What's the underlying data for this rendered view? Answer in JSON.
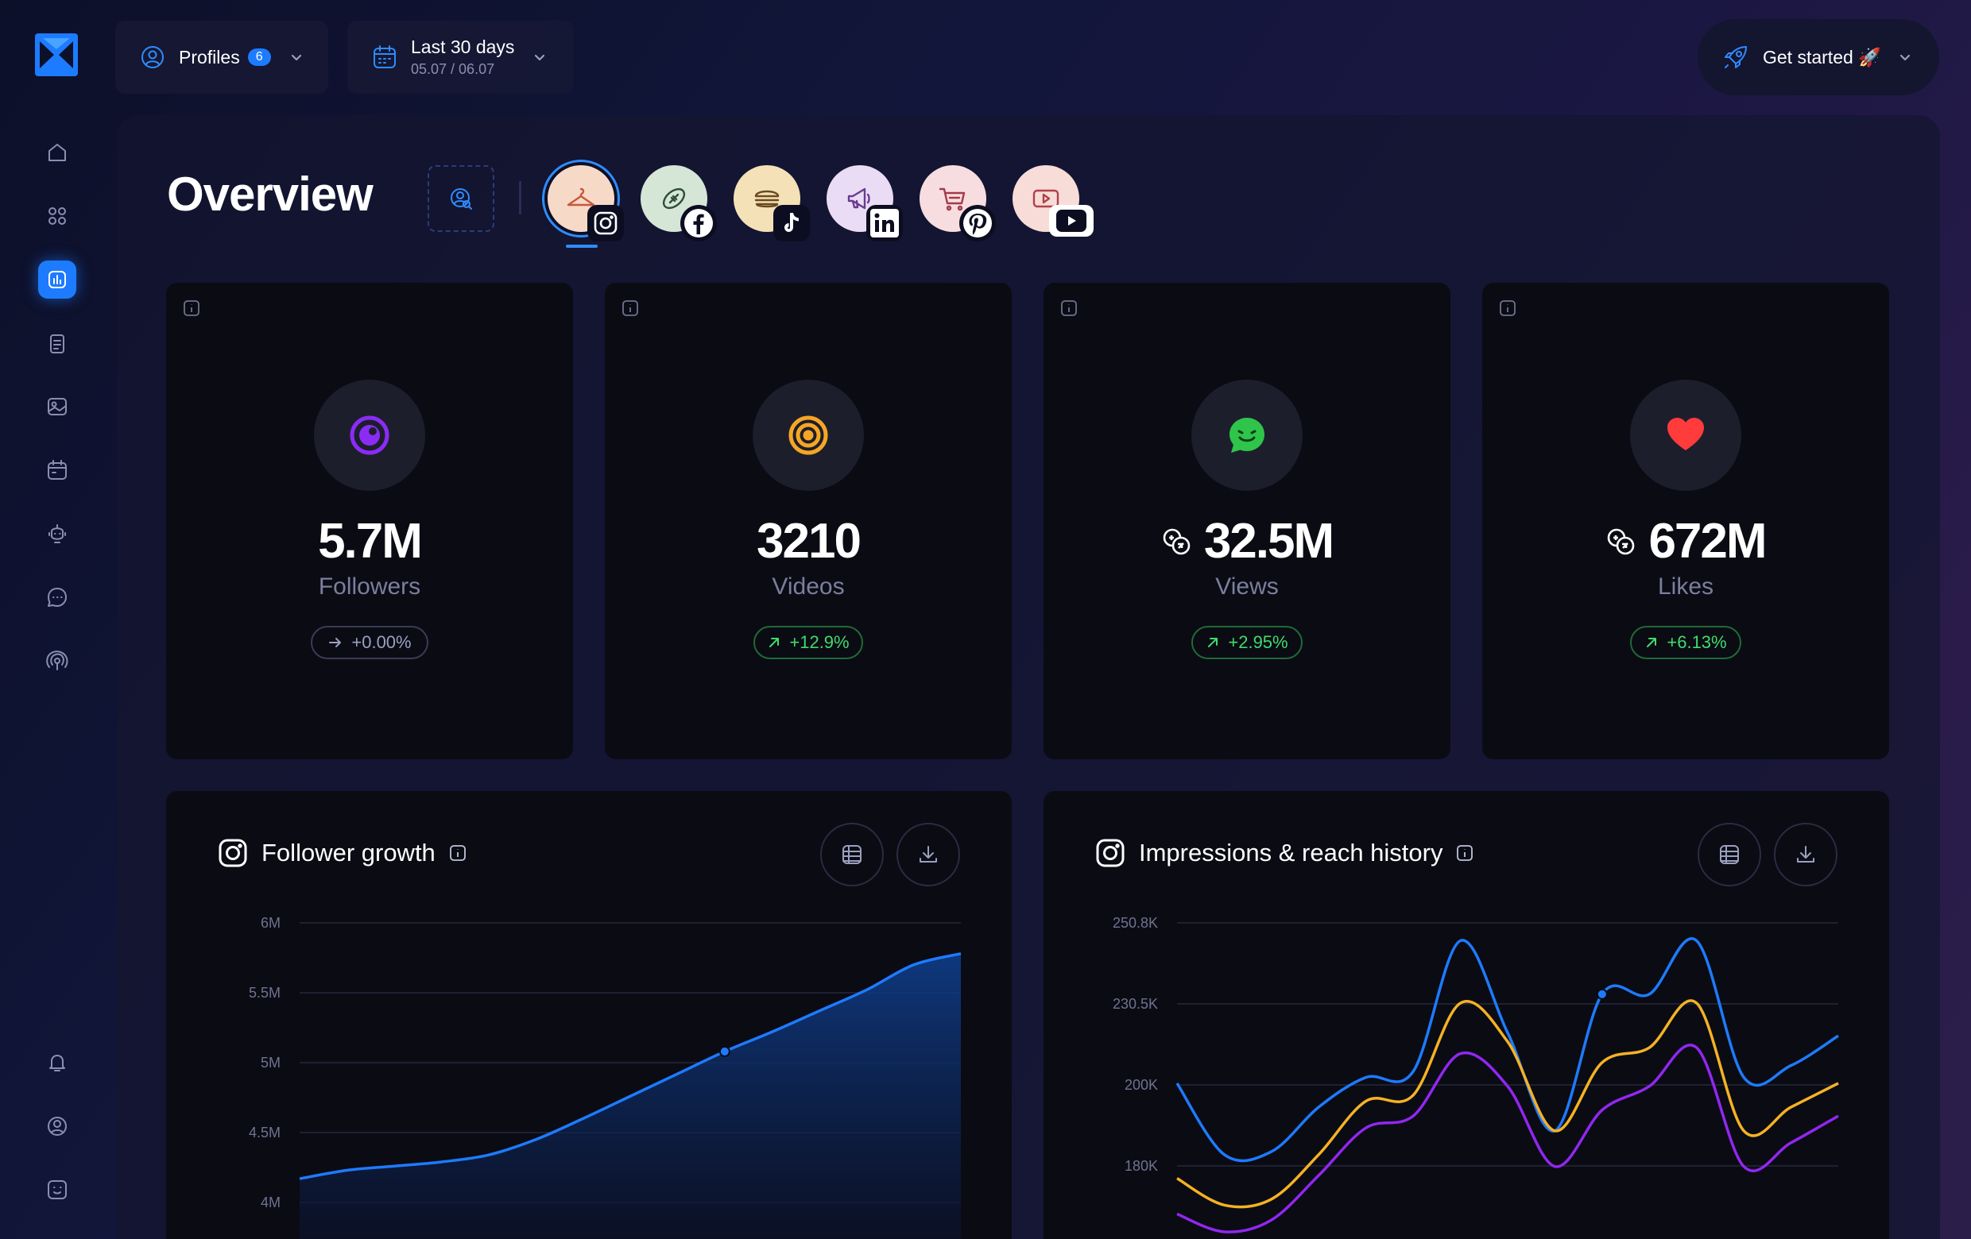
{
  "header": {
    "profiles_label": "Profiles",
    "profiles_count": "6",
    "date_range_label": "Last 30 days",
    "date_range_dates": "05.07 / 06.07",
    "get_started_label": "Get started 🚀"
  },
  "sidebar": {
    "items": [
      {
        "icon": "home-icon"
      },
      {
        "icon": "grid-icon"
      },
      {
        "icon": "analytics-icon",
        "active": true
      },
      {
        "icon": "clipboard-icon"
      },
      {
        "icon": "image-icon"
      },
      {
        "icon": "calendar-icon"
      },
      {
        "icon": "bot-icon"
      },
      {
        "icon": "chat-icon"
      },
      {
        "icon": "broadcast-icon"
      }
    ],
    "bottom_items": [
      {
        "icon": "bell-icon"
      },
      {
        "icon": "user-settings-icon"
      },
      {
        "icon": "smile-icon"
      }
    ]
  },
  "page": {
    "title": "Overview"
  },
  "profiles": [
    {
      "network": "instagram",
      "bg": "#f7d9c8",
      "selected": true
    },
    {
      "network": "facebook",
      "bg": "#d6e6d6"
    },
    {
      "network": "tiktok",
      "bg": "#f4e1b8"
    },
    {
      "network": "linkedin",
      "bg": "#eadcf4"
    },
    {
      "network": "pinterest",
      "bg": "#f7dde0"
    },
    {
      "network": "youtube",
      "bg": "#f7dcd8"
    }
  ],
  "stats": [
    {
      "value": "5.7M",
      "label": "Followers",
      "change": "+0.00%",
      "trend": "neutral",
      "icon": "eye-icon",
      "color": "#8b2cf5"
    },
    {
      "value": "3210",
      "label": "Videos",
      "change": "+12.9%",
      "trend": "up",
      "icon": "target-icon",
      "color": "#f5a623"
    },
    {
      "value": "32.5M",
      "label": "Views",
      "change": "+2.95%",
      "trend": "up",
      "icon": "smile-chat-icon",
      "color": "#2fc54a",
      "prefix_icon": "coins-icon"
    },
    {
      "value": "672M",
      "label": "Likes",
      "change": "+6.13%",
      "trend": "up",
      "icon": "heart-icon",
      "color": "#ff3b3b",
      "prefix_icon": "coins-icon"
    }
  ],
  "charts": {
    "follower_growth": {
      "title": "Follower growth"
    },
    "impressions": {
      "title": "Impressions & reach history"
    }
  },
  "chart_data": [
    {
      "type": "area",
      "title": "Follower growth",
      "y_ticks": [
        "6M",
        "5.5M",
        "5M",
        "4.5M",
        "4M"
      ],
      "ylim": [
        4000000,
        6000000
      ],
      "series": [
        {
          "values": [
            4170000,
            4230000,
            4260000,
            4290000,
            4340000,
            4450000,
            4600000,
            4760000,
            4920000,
            5080000,
            5220000,
            5370000,
            5520000,
            5700000,
            5780000
          ]
        }
      ],
      "highlight_index": 9,
      "colors": [
        "#1d7bff"
      ]
    },
    {
      "type": "line",
      "title": "Impressions & reach history",
      "y_ticks": [
        "250.8K",
        "230.5K",
        "200K",
        "180K"
      ],
      "series": [
        {
          "color": "#1d7bff",
          "values": [
            0.46,
            0.22,
            0.23,
            0.38,
            0.48,
            0.5,
            0.94,
            0.63,
            0.3,
            0.76,
            0.76,
            0.94,
            0.48,
            0.52,
            0.62
          ]
        },
        {
          "color": "#f5b223",
          "values": [
            0.14,
            0.05,
            0.07,
            0.22,
            0.4,
            0.42,
            0.73,
            0.6,
            0.3,
            0.53,
            0.58,
            0.73,
            0.3,
            0.38,
            0.46
          ]
        },
        {
          "color": "#9127f0",
          "values": [
            0.02,
            -0.04,
            0.0,
            0.15,
            0.31,
            0.35,
            0.56,
            0.45,
            0.18,
            0.37,
            0.45,
            0.58,
            0.18,
            0.26,
            0.35
          ]
        }
      ],
      "highlight": {
        "series": 0,
        "index": 9
      }
    }
  ]
}
